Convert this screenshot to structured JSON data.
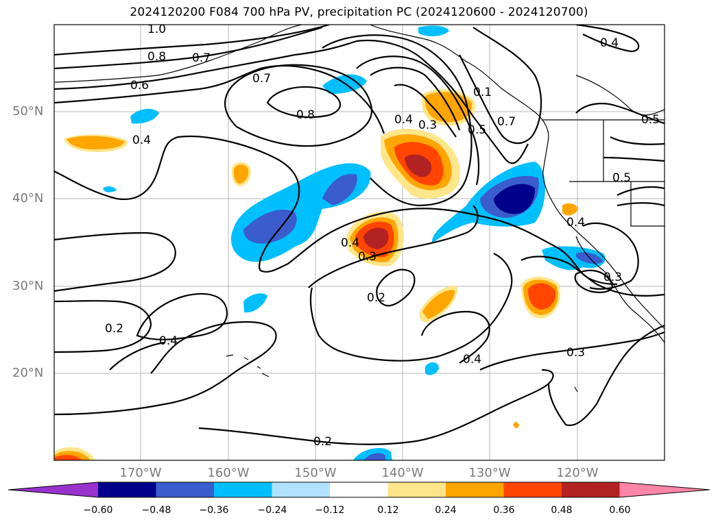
{
  "title": "2024120200 F084 700 hPa PV, precipitation PC (2024120600 - 2024120700)",
  "lat_labels": [
    "50°N",
    "40°N",
    "30°N",
    "20°N"
  ],
  "lon_labels": [
    "170°W",
    "160°W",
    "150°W",
    "140°W",
    "130°W",
    "120°W"
  ],
  "contour_labels": [
    "1.0",
    "0.8",
    "0.7",
    "0.6",
    "0.7",
    "0.8",
    "0.4",
    "0.4",
    "0.3",
    "0.1",
    "0.5",
    "0.7",
    "0.5",
    "0.5",
    "0.4",
    "0.4",
    "0.3",
    "0.3",
    "0.2",
    "0.2",
    "0.4",
    "0.4",
    "0.3",
    "0.2",
    "0.4"
  ],
  "colorbar": {
    "ticks": [
      "−0.60",
      "−0.48",
      "−0.36",
      "−0.24",
      "−0.12",
      "0.12",
      "0.24",
      "0.36",
      "0.48",
      "0.60"
    ],
    "colors": [
      "#9932cc",
      "#00008b",
      "#3a5ccc",
      "#00bfff",
      "#b0e2ff",
      "#ffffff",
      "#ffe68a",
      "#ffa500",
      "#ff4500",
      "#b22222",
      "#ff85a8"
    ]
  },
  "map_features": {
    "gridlines": true,
    "coastlines": true,
    "negative_shading_color": "#00bfff",
    "positive_shading_color": "#ffa500"
  }
}
